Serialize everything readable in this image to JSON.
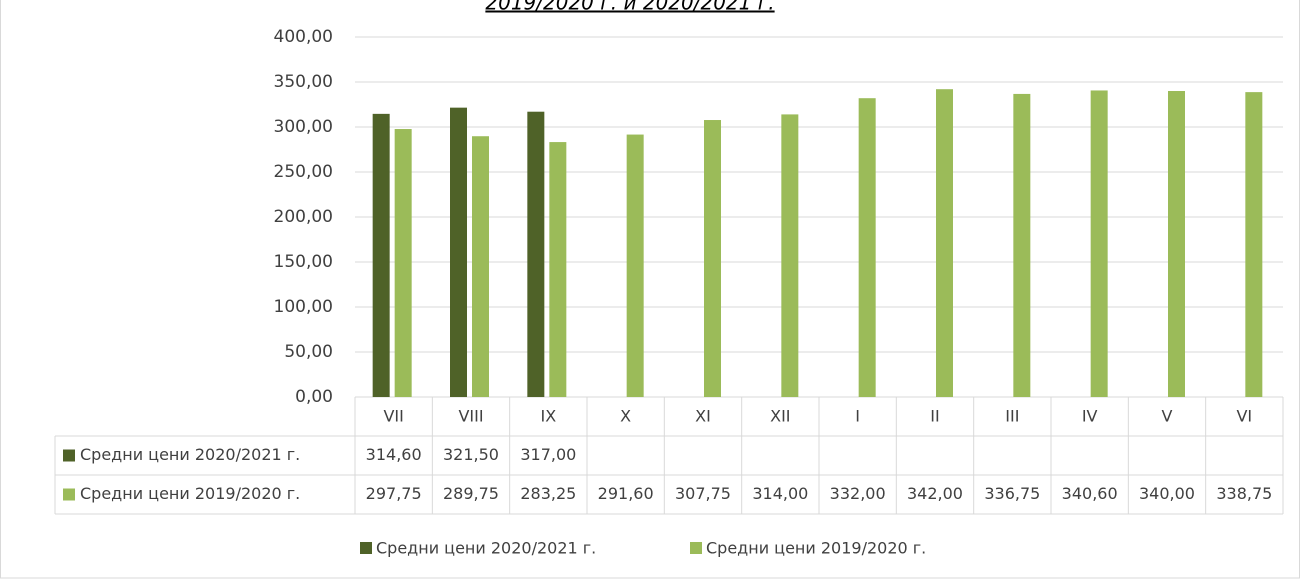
{
  "chart_data": {
    "type": "bar",
    "title": "2019/2020 г. и 2020/2021 г.",
    "categories": [
      "VII",
      "VIII",
      "IX",
      "X",
      "XI",
      "XII",
      "I",
      "II",
      "III",
      "IV",
      "V",
      "VI"
    ],
    "series": [
      {
        "name": "Средни цени 2020/2021 г.",
        "color": "#4f6228",
        "values": [
          314.6,
          321.5,
          317.0,
          null,
          null,
          null,
          null,
          null,
          null,
          null,
          null,
          null
        ],
        "value_labels": [
          "314,60",
          "321,50",
          "317,00",
          null,
          null,
          null,
          null,
          null,
          null,
          null,
          null,
          null
        ]
      },
      {
        "name": "Средни цени 2019/2020 г.",
        "color": "#9bbb59",
        "values": [
          297.75,
          289.75,
          283.25,
          291.6,
          307.75,
          314.0,
          332.0,
          342.0,
          336.75,
          340.6,
          340.0,
          338.75
        ],
        "value_labels": [
          "297,75",
          "289,75",
          "283,25",
          "291,60",
          "307,75",
          "314,00",
          "332,00",
          "342,00",
          "336,75",
          "340,60",
          "340,00",
          "338,75"
        ]
      }
    ],
    "ylim": [
      0,
      400
    ],
    "yticks": [
      {
        "value": 0,
        "label": "0,00"
      },
      {
        "value": 50,
        "label": "50,00"
      },
      {
        "value": 100,
        "label": "100,00"
      },
      {
        "value": 150,
        "label": "150,00"
      },
      {
        "value": 200,
        "label": "200,00"
      },
      {
        "value": 250,
        "label": "250,00"
      },
      {
        "value": 300,
        "label": "300,00"
      },
      {
        "value": 350,
        "label": "350,00"
      },
      {
        "value": 400,
        "label": "400,00"
      }
    ],
    "grid": true,
    "legend": "bottom",
    "data_table": true
  }
}
